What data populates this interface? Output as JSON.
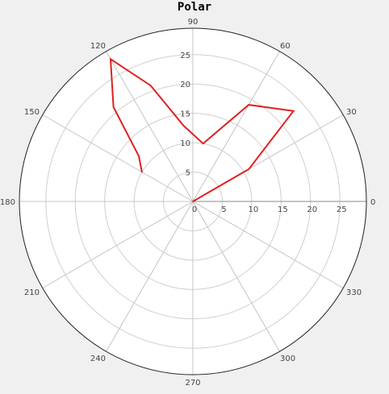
{
  "chart_data": {
    "type": "polar-line",
    "title": "Polar",
    "angle_ticks": [
      "0",
      "30",
      "60",
      "90",
      "120",
      "150",
      "180",
      "210",
      "240",
      "270",
      "300",
      "330"
    ],
    "radial_ticks": [
      "0",
      "5",
      "10",
      "15",
      "20",
      "25"
    ],
    "r_max": 29.5,
    "grid": true,
    "series": [
      {
        "color": "#e02020",
        "points": [
          {
            "theta": 0,
            "r": 0
          },
          {
            "theta": 30,
            "r": 11
          },
          {
            "theta": 42,
            "r": 23
          },
          {
            "theta": 60,
            "r": 19
          },
          {
            "theta": 80,
            "r": 10
          },
          {
            "theta": 97,
            "r": 13
          },
          {
            "theta": 110,
            "r": 21
          },
          {
            "theta": 120,
            "r": 28
          },
          {
            "theta": 130,
            "r": 21
          },
          {
            "theta": 140,
            "r": 12
          },
          {
            "theta": 150,
            "r": 10
          }
        ]
      }
    ]
  }
}
